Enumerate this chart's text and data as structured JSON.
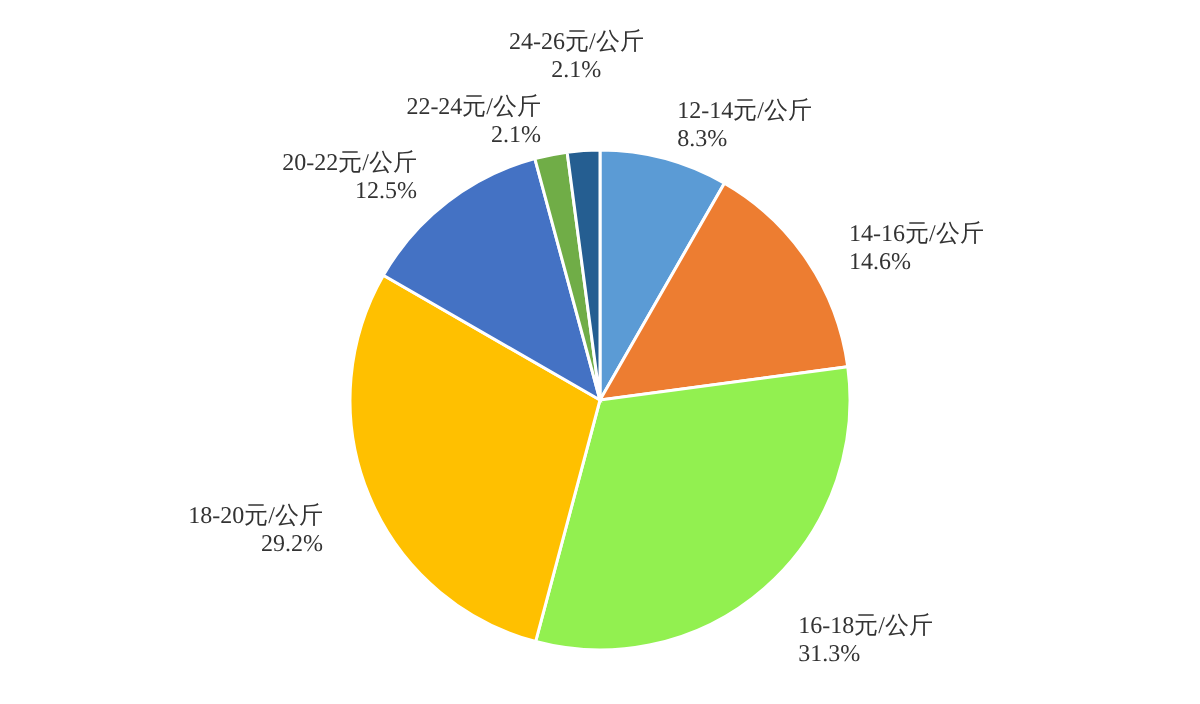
{
  "chart_data": {
    "type": "pie",
    "categories": [
      "12-14元/公斤",
      "14-16元/公斤",
      "16-18元/公斤",
      "18-20元/公斤",
      "20-22元/公斤",
      "22-24元/公斤",
      "24-26元/公斤"
    ],
    "values": [
      8.3,
      14.6,
      31.3,
      29.2,
      12.5,
      2.1,
      2.1
    ],
    "value_labels": [
      "8.3%",
      "14.6%",
      "31.3%",
      "29.2%",
      "12.5%",
      "2.1%",
      "2.1%"
    ],
    "colors": [
      "#5b9bd5",
      "#ed7d31",
      "#92f050",
      "#ffc000",
      "#4472c4",
      "#70ad47",
      "#255e91"
    ]
  }
}
